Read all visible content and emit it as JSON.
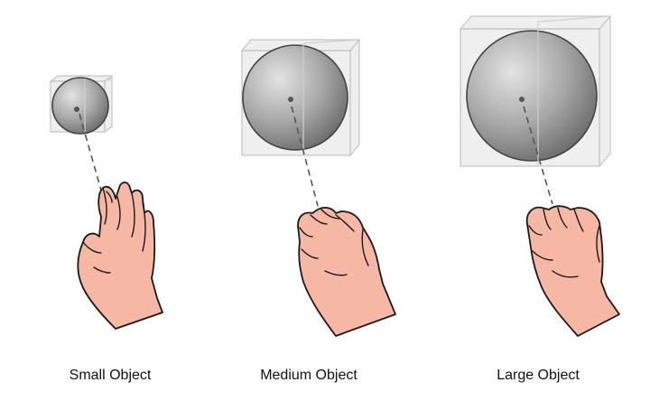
{
  "labels": {
    "small": "Small Object",
    "medium": "Medium Object",
    "large": "Large Object"
  },
  "colors": {
    "skin": "#f6b7a5",
    "outline": "#1a1a1a",
    "sphere_light": "#dcdcdc",
    "sphere_dark": "#6e6e6e",
    "box": "#e2e2e2",
    "ray": "#555555"
  }
}
